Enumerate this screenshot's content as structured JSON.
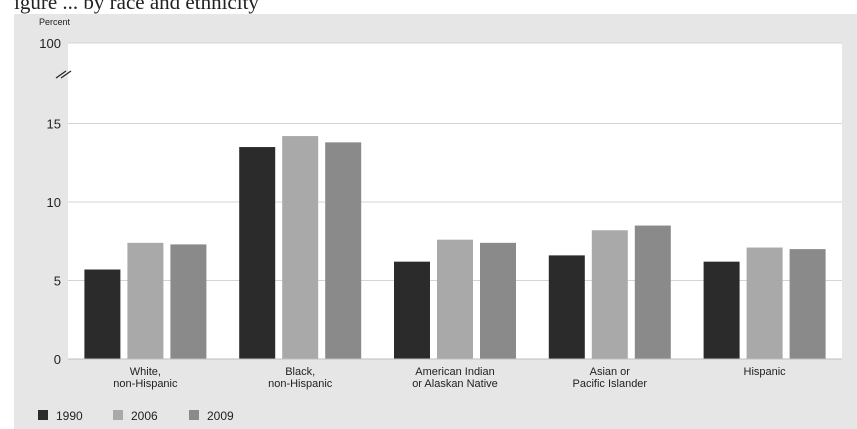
{
  "caption": "igure ... by race and ethnicity",
  "chart_data": {
    "type": "bar",
    "unit_label": "Percent",
    "categories": [
      [
        "White,",
        "non-Hispanic"
      ],
      [
        "Black,",
        "non-Hispanic"
      ],
      [
        "American Indian",
        "or Alaskan Native"
      ],
      [
        "Asian or",
        "Pacific Islander"
      ],
      [
        "Hispanic"
      ]
    ],
    "series": [
      {
        "name": "1990",
        "color": "#2b2b2b",
        "values": [
          5.7,
          13.5,
          6.2,
          6.6,
          6.2
        ]
      },
      {
        "name": "2006",
        "color": "#a9a9a9",
        "values": [
          7.4,
          14.2,
          7.6,
          8.2,
          7.1
        ]
      },
      {
        "name": "2009",
        "color": "#8a8a8a",
        "values": [
          7.3,
          13.8,
          7.4,
          8.5,
          7.0
        ]
      }
    ],
    "yticks": [
      "0",
      "5",
      "10",
      "15",
      "100"
    ],
    "ylim": [
      0,
      100
    ],
    "axis_break": true,
    "grid": true,
    "legend_position": "bottom-left"
  }
}
